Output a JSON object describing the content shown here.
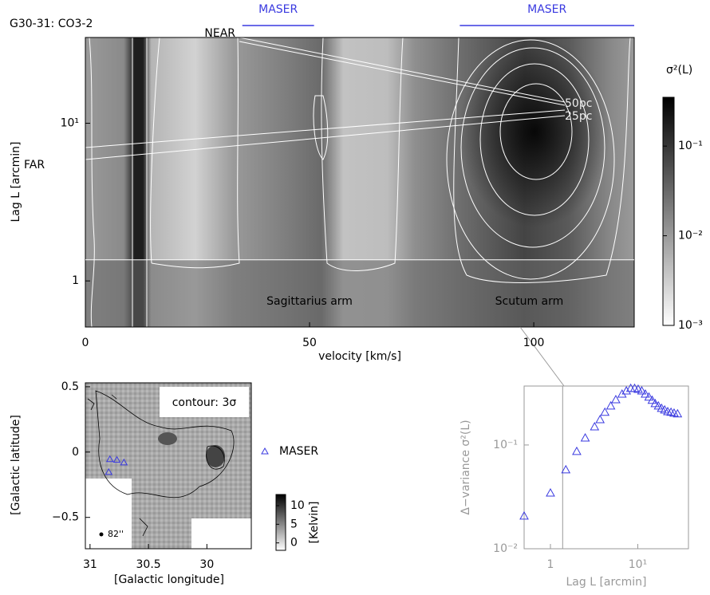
{
  "chart_data": [
    {
      "type": "heatmap",
      "title": "G30-31: CO3-2",
      "x_label": "velocity [km/s]",
      "y_label": "Lag L [arcmin]",
      "xlim": [
        0,
        122.4
      ],
      "xticks": [
        0,
        50,
        100
      ],
      "ylim": [
        0.51,
        35
      ],
      "yticks": [
        1,
        {
          "value": 10,
          "label": "10¹"
        }
      ],
      "y_log": true,
      "reference_lag": 1.36,
      "colorbar": {
        "label": "σ²(L)",
        "lim": [
          0.001,
          0.35
        ],
        "log": true,
        "ticks": [
          {
            "value": 0.001,
            "label": "10⁻³"
          },
          {
            "value": 0.01,
            "label": "10⁻²"
          },
          {
            "value": 0.1,
            "label": "10⁻¹"
          }
        ]
      },
      "annotations": [
        {
          "text": "Sagittarius arm",
          "x": 50
        },
        {
          "text": "Scutum arm",
          "x": 99
        }
      ],
      "maser_ranges": [
        {
          "label": "MASER",
          "range": [
            35,
            51
          ]
        },
        {
          "label": "MASER",
          "range": [
            83.5,
            122.4
          ]
        }
      ],
      "distance_labels": {
        "near": "NEAR",
        "far": "FAR",
        "scales": [
          "50pc",
          "25pc"
        ]
      }
    },
    {
      "type": "map",
      "x_label": "[Galactic longitude]",
      "y_label": "[Galactic latitude]",
      "xlim": [
        31.04,
        29.62
      ],
      "xticks": [
        31,
        30.5,
        30
      ],
      "ylim": [
        -0.74,
        0.53
      ],
      "yticks": [
        0.5,
        0,
        {
          "value": -0.5,
          "label": "−0.5"
        }
      ],
      "annotation": "contour: 3σ",
      "beam_label": "82''",
      "series": [
        {
          "name": "MASER",
          "color": "#3a3ae0",
          "x": [
            30.83,
            30.77,
            30.71,
            30.84
          ],
          "y": [
            -0.055,
            -0.06,
            -0.08,
            -0.153
          ]
        }
      ],
      "colorbar": {
        "label": "[Kelvin]",
        "lim": [
          -2,
          13
        ],
        "ticks": [
          0,
          5,
          10
        ]
      }
    },
    {
      "type": "scatter",
      "x_label": "Lag L [arcmin]",
      "y_label": "Δ−variance σ²(L)",
      "xlim": [
        0.5,
        38
      ],
      "ylim": [
        0.01,
        0.37
      ],
      "x_log": true,
      "y_log": true,
      "xticks": [
        1,
        {
          "value": 10,
          "label": "10¹"
        }
      ],
      "yticks": [
        {
          "value": 0.01,
          "label": "10⁻²"
        },
        {
          "value": 0.1,
          "label": "10⁻¹"
        }
      ],
      "reference_lag": 1.38,
      "series": [
        {
          "color": "#3a3ae0",
          "x": [
            0.5,
            1,
            1.5,
            2,
            2.5,
            3.2,
            3.7,
            4.2,
            4.9,
            5.6,
            6.6,
            7.4,
            8.3,
            9.2,
            10.1,
            11.1,
            12.2,
            13.4,
            14.6,
            15.8,
            17.2,
            18.7,
            20.3,
            22,
            24,
            26,
            28.5
          ],
          "values": [
            0.0207,
            0.0345,
            0.0578,
            0.0868,
            0.117,
            0.15,
            0.176,
            0.207,
            0.238,
            0.274,
            0.31,
            0.333,
            0.352,
            0.352,
            0.345,
            0.333,
            0.31,
            0.29,
            0.27,
            0.251,
            0.238,
            0.226,
            0.218,
            0.21,
            0.207,
            0.203,
            0.2
          ]
        }
      ]
    }
  ]
}
